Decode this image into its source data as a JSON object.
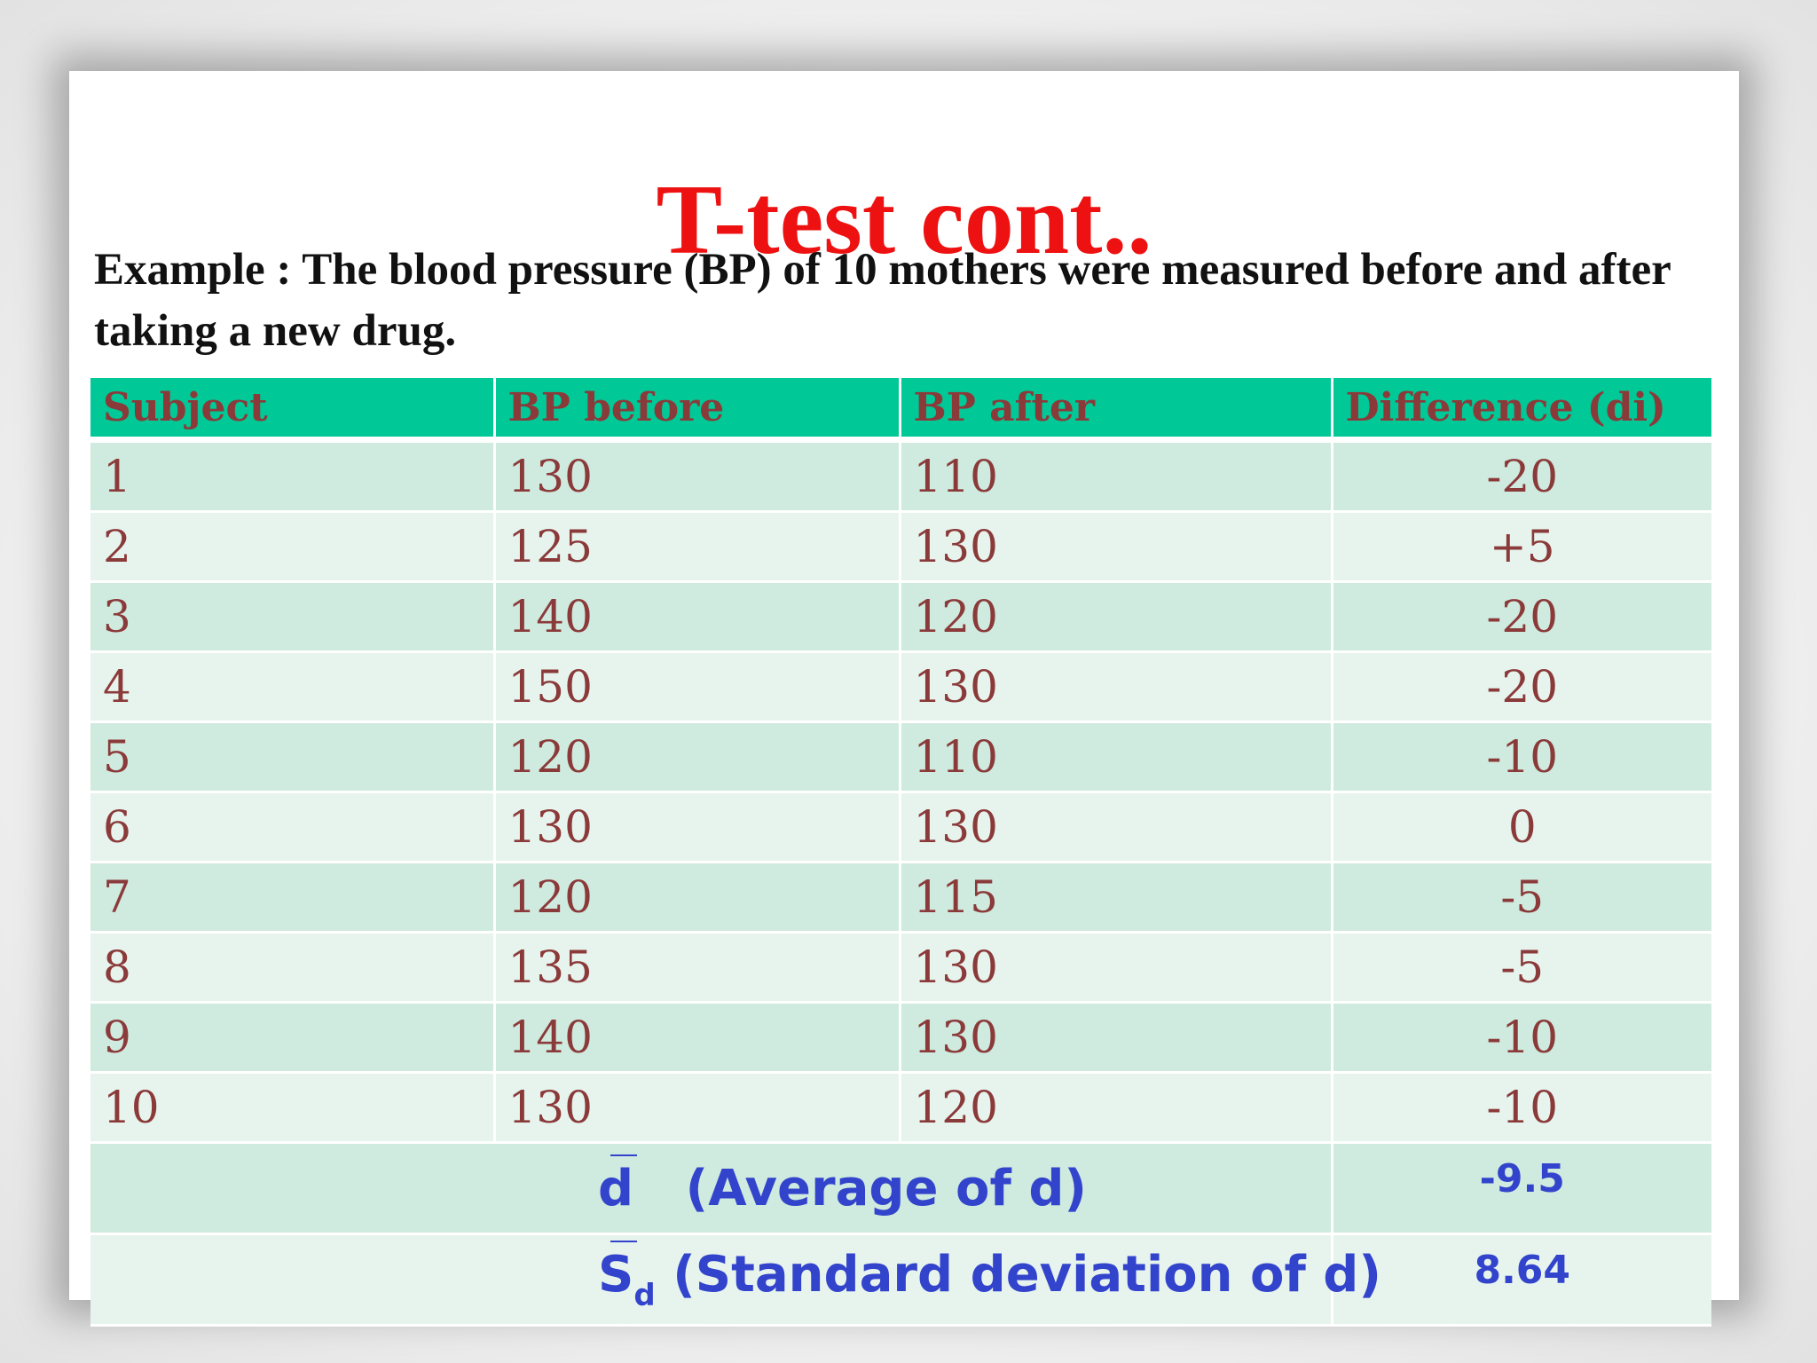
{
  "slide": {
    "title": "T-test cont..",
    "intro": "Example : The blood pressure (BP) of 10 mothers were measured before and after taking a new drug."
  },
  "table": {
    "headers": [
      "Subject",
      "BP before",
      "BP after",
      "Difference (di)"
    ],
    "rows": [
      {
        "subject": "1",
        "bp_before": "130",
        "bp_after": "110",
        "difference": "-20"
      },
      {
        "subject": "2",
        "bp_before": "125",
        "bp_after": "130",
        "difference": "+5"
      },
      {
        "subject": "3",
        "bp_before": "140",
        "bp_after": "120",
        "difference": "-20"
      },
      {
        "subject": "4",
        "bp_before": "150",
        "bp_after": "130",
        "difference": "-20"
      },
      {
        "subject": "5",
        "bp_before": "120",
        "bp_after": "110",
        "difference": "-10"
      },
      {
        "subject": "6",
        "bp_before": "130",
        "bp_after": "130",
        "difference": "0"
      },
      {
        "subject": "7",
        "bp_before": "120",
        "bp_after": "115",
        "difference": "-5"
      },
      {
        "subject": "8",
        "bp_before": "135",
        "bp_after": "130",
        "difference": "-5"
      },
      {
        "subject": "9",
        "bp_before": "140",
        "bp_after": "130",
        "difference": "-10"
      },
      {
        "subject": "10",
        "bp_before": "130",
        "bp_after": "120",
        "difference": "-10"
      }
    ],
    "summary": {
      "average": {
        "symbol": "d",
        "label": "(Average of d)",
        "value": "-9.5"
      },
      "std_dev": {
        "symbol": "S",
        "subscript": "d",
        "label": "(Standard deviation of d)",
        "value": "8.64"
      }
    }
  },
  "colors": {
    "title": "#ee1111",
    "header_bg": "#00c896",
    "cell_text": "#8b3a3a",
    "row_dark": "#cfeade",
    "row_light": "#e7f4ee",
    "summary_text": "#3344cc"
  }
}
